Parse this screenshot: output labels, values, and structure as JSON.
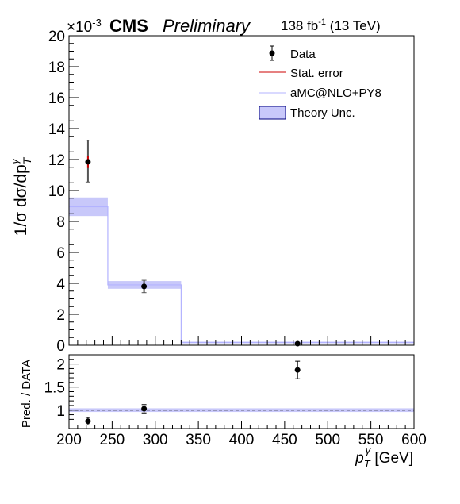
{
  "header": {
    "exponent_prefix": "×10",
    "exponent_power": "-3",
    "experiment": "CMS",
    "status": "Preliminary",
    "lumi_value": "138 fb",
    "lumi_power": "-1",
    "energy": "(13 TeV)"
  },
  "legend": {
    "data": "Data",
    "stat": "Stat. error",
    "mc": "aMC@NLO+PY8",
    "theory": "Theory Unc."
  },
  "colors": {
    "theory_band": "#c8c8fa",
    "theory_border": "#00007f",
    "mc_line": "#b3b3ff",
    "stat_error": "#cc0000",
    "data": "#000000"
  },
  "chart_data": [
    {
      "type": "step-histogram-with-points",
      "panel": "main",
      "ylabel_parts": [
        "1/σ dσ/dp",
        "T",
        "γ"
      ],
      "ylim": [
        0,
        20
      ],
      "y_scale_factor": "1e-3",
      "yticks": [
        "0",
        "2",
        "4",
        "6",
        "8",
        "10",
        "12",
        "14",
        "16",
        "18",
        "20"
      ],
      "xlim": [
        200,
        600
      ],
      "bins": [
        {
          "lo": 200,
          "hi": 245,
          "mc": 8.95,
          "unc_lo": 8.35,
          "unc_hi": 9.55
        },
        {
          "lo": 245,
          "hi": 330,
          "mc": 3.9,
          "unc_lo": 3.65,
          "unc_hi": 4.15
        },
        {
          "lo": 330,
          "hi": 600,
          "mc": 0.18,
          "unc_lo": 0.13,
          "unc_hi": 0.23
        }
      ],
      "data_points": [
        {
          "x": 222,
          "y": 11.85,
          "stat_lo": 11.45,
          "stat_hi": 12.25,
          "err_lo": 10.55,
          "err_hi": 13.25
        },
        {
          "x": 287,
          "y": 3.8,
          "stat_lo": 3.65,
          "stat_hi": 3.95,
          "err_lo": 3.4,
          "err_hi": 4.2
        },
        {
          "x": 465,
          "y": 0.1,
          "stat_lo": 0.07,
          "stat_hi": 0.13,
          "err_lo": 0.03,
          "err_hi": 0.17
        }
      ]
    },
    {
      "type": "ratio",
      "panel": "ratio",
      "ylabel": "Pred. / DATA",
      "ylim": [
        0.6,
        2.2
      ],
      "yticks": [
        "1",
        "1.5",
        "2"
      ],
      "xlabel_parts": [
        "p",
        "T",
        "γ",
        " [GeV]"
      ],
      "xlim": [
        200,
        600
      ],
      "xticks": [
        "200",
        "250",
        "300",
        "350",
        "400",
        "450",
        "500",
        "550",
        "600"
      ],
      "reference_line": 1,
      "band": [
        {
          "lo": 200,
          "hi": 600,
          "unc_lo": 0.96,
          "unc_hi": 1.04
        }
      ],
      "data_points": [
        {
          "x": 222,
          "y": 0.76,
          "err_lo": 0.68,
          "err_hi": 0.84
        },
        {
          "x": 287,
          "y": 1.03,
          "err_lo": 0.94,
          "err_hi": 1.12
        },
        {
          "x": 465,
          "y": 1.87,
          "err_lo": 1.68,
          "err_hi": 2.06
        }
      ]
    }
  ]
}
